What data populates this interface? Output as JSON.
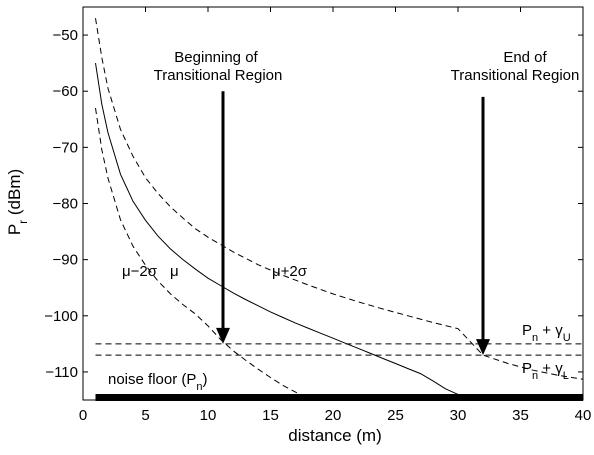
{
  "chart_data": {
    "type": "line",
    "xlabel": "distance (m)",
    "ylabel_main": "P",
    "ylabel_sub": "r",
    "ylabel_rest": " (dBm)",
    "xlim": [
      0,
      40
    ],
    "ylim": [
      -115,
      -45
    ],
    "xticks": [
      0,
      5,
      10,
      15,
      20,
      25,
      30,
      35,
      40
    ],
    "yticks": [
      -110,
      -100,
      -90,
      -80,
      -70,
      -60,
      -50
    ],
    "grid": false,
    "series": [
      {
        "name": "μ",
        "style": "solid",
        "x": [
          1.0,
          1.5,
          2,
          3,
          4,
          5,
          6,
          7,
          8,
          9,
          10,
          11,
          12,
          13,
          14,
          15,
          16,
          17,
          18,
          19,
          20,
          21,
          22,
          23,
          24,
          25,
          26,
          27,
          28,
          29,
          30
        ],
        "y": [
          -55.0,
          -62.3,
          -67.4,
          -74.8,
          -79.6,
          -83.0,
          -85.8,
          -88.1,
          -90.0,
          -91.7,
          -93.3,
          -94.6,
          -95.9,
          -97.1,
          -98.2,
          -99.3,
          -100.3,
          -101.3,
          -102.2,
          -103.1,
          -104.0,
          -104.9,
          -105.8,
          -106.7,
          -107.6,
          -108.5,
          -109.4,
          -110.3,
          -111.6,
          -113.0,
          -114.0
        ]
      },
      {
        "name": "μ+2σ",
        "style": "dashed",
        "x": [
          1.0,
          1.5,
          2,
          3,
          4,
          5,
          6,
          7,
          8,
          9,
          10,
          12,
          14,
          16,
          18,
          20,
          22,
          24,
          26,
          28,
          30,
          32,
          34,
          36,
          38,
          40
        ],
        "y": [
          -47.0,
          -54.0,
          -59.5,
          -66.8,
          -71.6,
          -75.4,
          -78.2,
          -80.6,
          -82.6,
          -84.5,
          -86.0,
          -88.6,
          -90.9,
          -92.8,
          -94.5,
          -96.1,
          -97.5,
          -98.8,
          -100.0,
          -101.2,
          -102.3,
          -107.0,
          -108.5,
          -109.7,
          -110.6,
          -111.3
        ]
      },
      {
        "name": "μ−2σ",
        "style": "dashed",
        "x": [
          1.0,
          1.5,
          2,
          3,
          4,
          5,
          6,
          7,
          8,
          9,
          10,
          11,
          12,
          13,
          14,
          15,
          16,
          17,
          18
        ],
        "y": [
          -63.0,
          -70.4,
          -75.5,
          -82.9,
          -87.6,
          -91.0,
          -93.8,
          -96.1,
          -98.0,
          -99.7,
          -101.8,
          -104.2,
          -106.2,
          -107.9,
          -109.5,
          -111.0,
          -112.4,
          -113.6,
          -114.7
        ]
      }
    ],
    "hlines": [
      {
        "name": "P_n + γ_U",
        "y": -105,
        "style": "dashed"
      },
      {
        "name": "P_n + γ_L",
        "y": -107,
        "style": "dashed"
      }
    ],
    "noise_floor": {
      "y": -115,
      "x_start": 1,
      "x_end": 40
    },
    "arrows": [
      {
        "name": "beginning",
        "x": 11.2,
        "y_from": -60,
        "y_to": -105,
        "label_line1": "Beginning of",
        "label_line2": "Transitional Region"
      },
      {
        "name": "end",
        "x": 32,
        "y_from": -61,
        "y_to": -107,
        "label_line1": "End of",
        "label_line2": "Transitional Region"
      }
    ],
    "annotations": {
      "mu_minus": "μ−2σ",
      "mu": "μ",
      "mu_plus": "μ+2σ",
      "gamma_u_main": "P",
      "gamma_u_sub1": "n",
      "gamma_u_mid": " + γ",
      "gamma_u_sub2": "U",
      "gamma_l_main": "P",
      "gamma_l_sub1": "n",
      "gamma_l_mid": " + γ",
      "gamma_l_sub2": "L",
      "noise_main": "noise floor (P",
      "noise_sub": "n",
      "noise_end": ")"
    }
  }
}
